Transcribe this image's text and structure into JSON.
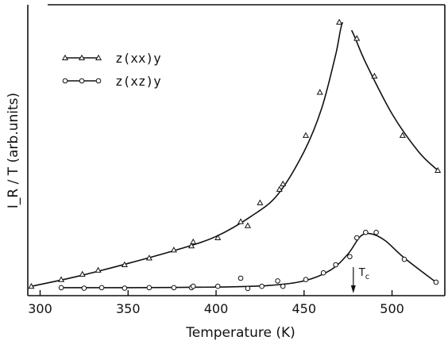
{
  "chart_data": {
    "type": "line",
    "title": "",
    "xlabel": "Temperature (K)",
    "ylabel": "I_R / T (arb.units)",
    "xlim": [
      293,
      530
    ],
    "ylim": [
      0,
      100
    ],
    "x_ticks": [
      "300",
      "350",
      "400",
      "450",
      "500"
    ],
    "grid": false,
    "legend_position": "top-left",
    "annotation": "T_c",
    "annotation_x": 478,
    "series": [
      {
        "name": "z(xx)y",
        "marker": "triangle",
        "points": [
          [
            295,
            2
          ],
          [
            312,
            4.5
          ],
          [
            324,
            6.5
          ],
          [
            333,
            8
          ],
          [
            348,
            10
          ],
          [
            362,
            12.5
          ],
          [
            376,
            15.5
          ],
          [
            386,
            17
          ],
          [
            387,
            18.5
          ],
          [
            401,
            20
          ],
          [
            414,
            26
          ],
          [
            418,
            24.5
          ],
          [
            425,
            33
          ],
          [
            436,
            38
          ],
          [
            438,
            40
          ],
          [
            451,
            58
          ],
          [
            459,
            74
          ],
          [
            470,
            100
          ],
          [
            480,
            94
          ],
          [
            490,
            80
          ],
          [
            506,
            58
          ],
          [
            526,
            45
          ]
        ],
        "curve": [
          [
            295,
            2
          ],
          [
            320,
            5.5
          ],
          [
            350,
            10.5
          ],
          [
            380,
            16
          ],
          [
            400,
            20.5
          ],
          [
            420,
            28
          ],
          [
            435,
            36
          ],
          [
            450,
            52
          ],
          [
            460,
            68
          ],
          [
            468,
            88
          ],
          [
            472,
            100
          ],
          [
            477,
            97
          ],
          [
            485,
            85
          ],
          [
            500,
            66
          ],
          [
            515,
            52
          ],
          [
            526,
            45
          ]
        ]
      },
      {
        "name": "z(xz)y",
        "marker": "circle",
        "points": [
          [
            312,
            1.5
          ],
          [
            325,
            1.3
          ],
          [
            335,
            1.5
          ],
          [
            348,
            1.3
          ],
          [
            362,
            1.5
          ],
          [
            376,
            1.5
          ],
          [
            386,
            1.5
          ],
          [
            387,
            2
          ],
          [
            401,
            2
          ],
          [
            414,
            5
          ],
          [
            418,
            1.2
          ],
          [
            426,
            2
          ],
          [
            435,
            4
          ],
          [
            438,
            2
          ],
          [
            451,
            4.5
          ],
          [
            461,
            7
          ],
          [
            468,
            10
          ],
          [
            476,
            13
          ],
          [
            480,
            20
          ],
          [
            485,
            22
          ],
          [
            491,
            22
          ],
          [
            507,
            12
          ],
          [
            525,
            3.5
          ]
        ],
        "curve": [
          [
            312,
            1.5
          ],
          [
            350,
            1.5
          ],
          [
            400,
            1.7
          ],
          [
            430,
            2.3
          ],
          [
            450,
            4
          ],
          [
            465,
            8
          ],
          [
            475,
            14
          ],
          [
            482,
            20.5
          ],
          [
            488,
            21.5
          ],
          [
            496,
            19
          ],
          [
            507,
            12.5
          ],
          [
            525,
            3.5
          ]
        ]
      }
    ]
  }
}
